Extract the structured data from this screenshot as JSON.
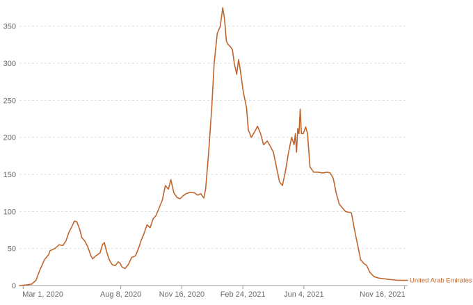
{
  "chart_data": {
    "type": "line",
    "title": "",
    "xlabel": "",
    "ylabel": "",
    "ylim": [
      0,
      375
    ],
    "xlim": [
      "2020-02-24",
      "2021-11-21"
    ],
    "y_ticks": [
      0,
      50,
      100,
      150,
      200,
      250,
      300,
      350
    ],
    "x_ticks": [
      {
        "date": "2020-03-01",
        "label": "Mar 1, 2020"
      },
      {
        "date": "2020-08-08",
        "label": "Aug 8, 2020"
      },
      {
        "date": "2020-11-16",
        "label": "Nov 16, 2020"
      },
      {
        "date": "2021-02-24",
        "label": "Feb 24, 2021"
      },
      {
        "date": "2021-06-04",
        "label": "Jun 4, 2021"
      },
      {
        "date": "2021-11-16",
        "label": "Nov 16, 2021"
      }
    ],
    "grid": true,
    "legend": "inline-right-end",
    "series": [
      {
        "name": "United Arab Emirates",
        "color": "#c0652c",
        "points": [
          [
            "2020-02-24",
            0
          ],
          [
            "2020-03-08",
            1
          ],
          [
            "2020-03-15",
            2
          ],
          [
            "2020-03-22",
            7
          ],
          [
            "2020-03-29",
            22
          ],
          [
            "2020-04-05",
            35
          ],
          [
            "2020-04-12",
            42
          ],
          [
            "2020-04-14",
            47
          ],
          [
            "2020-04-22",
            50
          ],
          [
            "2020-04-29",
            55
          ],
          [
            "2020-05-05",
            54
          ],
          [
            "2020-05-10",
            60
          ],
          [
            "2020-05-15",
            72
          ],
          [
            "2020-05-20",
            80
          ],
          [
            "2020-05-24",
            87
          ],
          [
            "2020-05-28",
            86
          ],
          [
            "2020-06-02",
            75
          ],
          [
            "2020-06-05",
            65
          ],
          [
            "2020-06-10",
            60
          ],
          [
            "2020-06-15",
            52
          ],
          [
            "2020-06-20",
            40
          ],
          [
            "2020-06-23",
            36
          ],
          [
            "2020-06-28",
            40
          ],
          [
            "2020-07-05",
            44
          ],
          [
            "2020-07-09",
            55
          ],
          [
            "2020-07-12",
            58
          ],
          [
            "2020-07-16",
            45
          ],
          [
            "2020-07-20",
            35
          ],
          [
            "2020-07-25",
            28
          ],
          [
            "2020-07-30",
            27
          ],
          [
            "2020-08-04",
            32
          ],
          [
            "2020-08-07",
            30
          ],
          [
            "2020-08-10",
            25
          ],
          [
            "2020-08-15",
            23
          ],
          [
            "2020-08-20",
            28
          ],
          [
            "2020-08-26",
            38
          ],
          [
            "2020-09-01",
            40
          ],
          [
            "2020-09-06",
            50
          ],
          [
            "2020-09-10",
            60
          ],
          [
            "2020-09-15",
            70
          ],
          [
            "2020-09-20",
            82
          ],
          [
            "2020-09-25",
            78
          ],
          [
            "2020-09-30",
            90
          ],
          [
            "2020-10-05",
            95
          ],
          [
            "2020-10-10",
            105
          ],
          [
            "2020-10-15",
            115
          ],
          [
            "2020-10-20",
            135
          ],
          [
            "2020-10-25",
            130
          ],
          [
            "2020-10-29",
            143
          ],
          [
            "2020-11-03",
            125
          ],
          [
            "2020-11-08",
            119
          ],
          [
            "2020-11-13",
            117
          ],
          [
            "2020-11-18",
            121
          ],
          [
            "2020-11-23",
            124
          ],
          [
            "2020-11-30",
            126
          ],
          [
            "2020-12-07",
            125
          ],
          [
            "2020-12-12",
            122
          ],
          [
            "2020-12-17",
            124
          ],
          [
            "2020-12-22",
            118
          ],
          [
            "2020-12-25",
            130
          ],
          [
            "2020-12-30",
            180
          ],
          [
            "2021-01-04",
            240
          ],
          [
            "2021-01-08",
            300
          ],
          [
            "2021-01-13",
            340
          ],
          [
            "2021-01-18",
            350
          ],
          [
            "2021-01-22",
            375
          ],
          [
            "2021-01-25",
            360
          ],
          [
            "2021-01-28",
            330
          ],
          [
            "2021-01-31",
            325
          ],
          [
            "2021-02-04",
            322
          ],
          [
            "2021-02-07",
            318
          ],
          [
            "2021-02-10",
            300
          ],
          [
            "2021-02-14",
            285
          ],
          [
            "2021-02-17",
            305
          ],
          [
            "2021-02-20",
            290
          ],
          [
            "2021-02-25",
            260
          ],
          [
            "2021-03-02",
            240
          ],
          [
            "2021-03-05",
            210
          ],
          [
            "2021-03-10",
            200
          ],
          [
            "2021-03-15",
            207
          ],
          [
            "2021-03-20",
            215
          ],
          [
            "2021-03-25",
            205
          ],
          [
            "2021-03-30",
            190
          ],
          [
            "2021-04-05",
            195
          ],
          [
            "2021-04-10",
            188
          ],
          [
            "2021-04-15",
            180
          ],
          [
            "2021-04-20",
            160
          ],
          [
            "2021-04-25",
            140
          ],
          [
            "2021-04-30",
            135
          ],
          [
            "2021-05-05",
            155
          ],
          [
            "2021-05-10",
            180
          ],
          [
            "2021-05-15",
            200
          ],
          [
            "2021-05-19",
            190
          ],
          [
            "2021-05-21",
            205
          ],
          [
            "2021-05-23",
            180
          ],
          [
            "2021-05-25",
            212
          ],
          [
            "2021-05-27",
            205
          ],
          [
            "2021-05-29",
            238
          ],
          [
            "2021-05-31",
            205
          ],
          [
            "2021-06-03",
            205
          ],
          [
            "2021-06-07",
            214
          ],
          [
            "2021-06-10",
            205
          ],
          [
            "2021-06-14",
            160
          ],
          [
            "2021-06-20",
            153
          ],
          [
            "2021-06-27",
            153
          ],
          [
            "2021-07-05",
            152
          ],
          [
            "2021-07-12",
            153
          ],
          [
            "2021-07-17",
            152
          ],
          [
            "2021-07-22",
            145
          ],
          [
            "2021-07-27",
            125
          ],
          [
            "2021-08-01",
            110
          ],
          [
            "2021-08-06",
            105
          ],
          [
            "2021-08-11",
            100
          ],
          [
            "2021-08-16",
            99
          ],
          [
            "2021-08-21",
            98
          ],
          [
            "2021-08-26",
            75
          ],
          [
            "2021-08-31",
            55
          ],
          [
            "2021-09-05",
            35
          ],
          [
            "2021-09-10",
            30
          ],
          [
            "2021-09-15",
            27
          ],
          [
            "2021-09-20",
            18
          ],
          [
            "2021-09-27",
            12
          ],
          [
            "2021-10-05",
            10
          ],
          [
            "2021-10-15",
            9
          ],
          [
            "2021-10-25",
            8
          ],
          [
            "2021-11-05",
            7
          ],
          [
            "2021-11-16",
            7
          ],
          [
            "2021-11-21",
            7
          ]
        ]
      }
    ]
  }
}
